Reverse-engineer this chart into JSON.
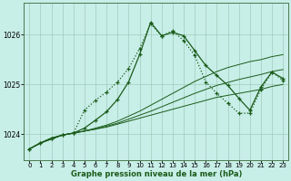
{
  "bg_color": "#c8eee8",
  "grid_color": "#a0ccbb",
  "line_color": "#1a5c1a",
  "xlabel": "Graphe pression niveau de la mer (hPa)",
  "yticks": [
    1024,
    1025,
    1026
  ],
  "xlim": [
    -0.5,
    23.5
  ],
  "ylim": [
    1023.48,
    1026.65
  ],
  "xticks": [
    0,
    1,
    2,
    3,
    4,
    5,
    6,
    7,
    8,
    9,
    10,
    11,
    12,
    13,
    14,
    15,
    16,
    17,
    18,
    19,
    20,
    21,
    22,
    23
  ],
  "line_main": [
    1023.7,
    1023.82,
    1023.92,
    1023.98,
    1024.02,
    1024.12,
    1024.28,
    1024.45,
    1024.7,
    1025.05,
    1025.6,
    1026.25,
    1025.98,
    1026.05,
    1025.98,
    1025.68,
    1025.38,
    1025.18,
    1024.98,
    1024.72,
    1024.48,
    1024.95,
    1025.25,
    1025.12
  ],
  "line_dotted": [
    1023.7,
    1023.82,
    1023.92,
    1023.98,
    1024.02,
    1024.48,
    1024.68,
    1024.85,
    1025.05,
    1025.32,
    1025.72,
    1026.22,
    1025.98,
    1026.08,
    1025.88,
    1025.58,
    1025.05,
    1024.82,
    1024.62,
    1024.42,
    1024.42,
    1024.9,
    1025.25,
    1025.08
  ],
  "line_flat1": [
    1023.7,
    1023.82,
    1023.9,
    1023.98,
    1024.02,
    1024.06,
    1024.1,
    1024.14,
    1024.2,
    1024.26,
    1024.32,
    1024.38,
    1024.44,
    1024.5,
    1024.56,
    1024.62,
    1024.68,
    1024.74,
    1024.78,
    1024.82,
    1024.86,
    1024.9,
    1024.96,
    1025.0
  ],
  "line_flat2": [
    1023.7,
    1023.82,
    1023.9,
    1023.98,
    1024.02,
    1024.06,
    1024.1,
    1024.16,
    1024.22,
    1024.3,
    1024.38,
    1024.46,
    1024.55,
    1024.64,
    1024.73,
    1024.82,
    1024.9,
    1024.98,
    1025.04,
    1025.1,
    1025.15,
    1025.2,
    1025.26,
    1025.3
  ],
  "line_flat3": [
    1023.7,
    1023.82,
    1023.9,
    1023.98,
    1024.02,
    1024.06,
    1024.12,
    1024.18,
    1024.26,
    1024.36,
    1024.46,
    1024.58,
    1024.7,
    1024.82,
    1024.94,
    1025.06,
    1025.16,
    1025.26,
    1025.34,
    1025.4,
    1025.46,
    1025.5,
    1025.56,
    1025.6
  ]
}
